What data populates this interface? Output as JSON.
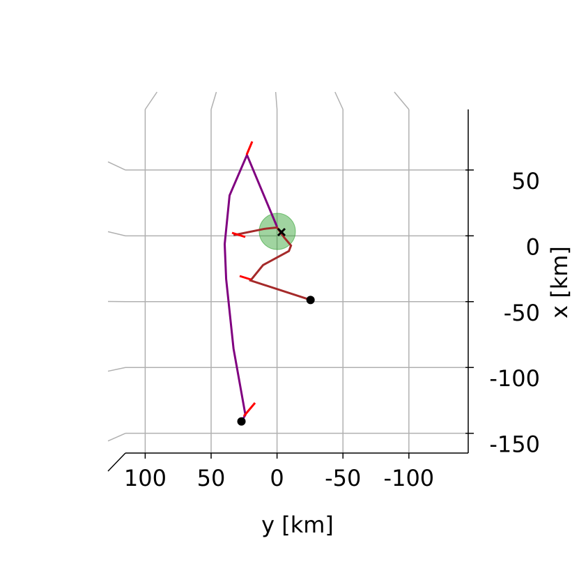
{
  "chart_data": {
    "type": "line",
    "x_label": "y [km]",
    "y_label": "x [km]",
    "xlim": [
      115,
      -145
    ],
    "xticks": [
      100,
      50,
      0,
      -50,
      -100
    ],
    "ylim": [
      -165,
      96
    ],
    "yticks": [
      50,
      0,
      -50,
      -100,
      -150
    ],
    "grid": true,
    "series": [
      {
        "color": "#800080",
        "x": [
          27,
          24,
          33,
          38.6,
          39.7,
          36,
          22.8,
          12.2,
          0
        ],
        "values": [
          -141,
          -136,
          -85.7,
          -32.8,
          -6.3,
          30.7,
          61.4,
          36,
          6.9
        ]
      },
      {
        "color": "#a52a2a",
        "x": [
          -25.4,
          20.1,
          10.6,
          -9,
          -10.6,
          -5.3,
          0,
          9.5,
          33
        ],
        "values": [
          -48.7,
          -33.9,
          -22.2,
          -11.6,
          -7.4,
          -1.1,
          6.3,
          5.3,
          0.5
        ]
      }
    ]
  }
}
